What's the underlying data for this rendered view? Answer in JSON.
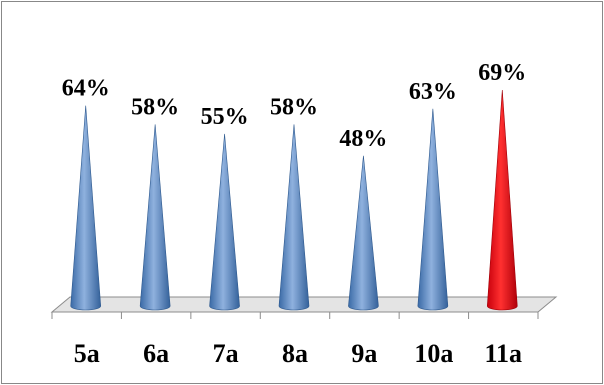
{
  "chart_data": {
    "type": "bar",
    "style": "3d-cone",
    "categories": [
      "5a",
      "6a",
      "7a",
      "8a",
      "9a",
      "10a",
      "11a"
    ],
    "values": [
      64,
      58,
      55,
      58,
      48,
      63,
      69
    ],
    "value_labels": [
      "64%",
      "58%",
      "55%",
      "58%",
      "48%",
      "63%",
      "69%"
    ],
    "unit": "%",
    "title": "",
    "xlabel": "",
    "ylabel": "",
    "ylim": [
      0,
      100
    ],
    "grid": false,
    "legend": "none",
    "colors": {
      "default": "#4f81bd",
      "highlight": "#e0000f",
      "highlight_category": "11a",
      "floor": "#e4e4e4",
      "frame": "#888888"
    }
  }
}
